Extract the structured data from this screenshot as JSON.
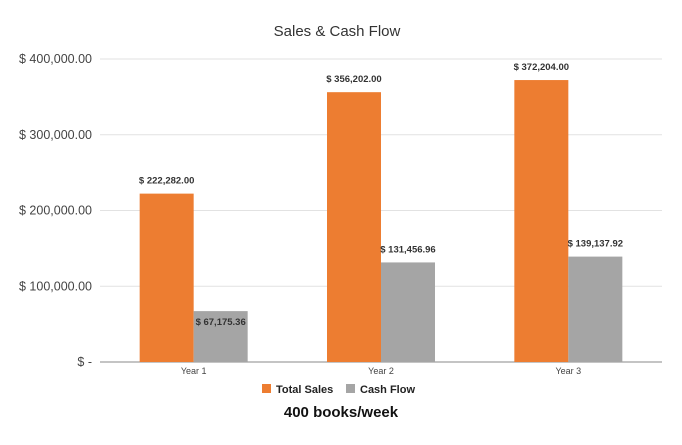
{
  "chart_data": {
    "type": "bar",
    "title": "Sales & Cash Flow",
    "categories": [
      "Year 1",
      "Year 2",
      "Year 3"
    ],
    "series": [
      {
        "name": "Total Sales",
        "color": "#ed7d31",
        "values": [
          222282.0,
          356202.0,
          372204.0
        ],
        "labels": [
          "$ 222,282.00",
          "$ 356,202.00",
          "$ 372,204.00"
        ]
      },
      {
        "name": "Cash Flow",
        "color": "#a5a5a5",
        "values": [
          67175.36,
          131456.96,
          139137.92
        ],
        "labels": [
          "$ 67,175.36",
          "$ 131,456.96",
          "$ 139,137.92"
        ]
      }
    ],
    "ylim": [
      0,
      400000
    ],
    "yticks": [
      {
        "value": 0,
        "label": "$ -"
      },
      {
        "value": 100000,
        "label": "$ 100,000.00"
      },
      {
        "value": 200000,
        "label": "$ 200,000.00"
      },
      {
        "value": 300000,
        "label": "$ 300,000.00"
      },
      {
        "value": 400000,
        "label": "$ 400,000.00"
      }
    ],
    "grid": true,
    "legend_position": "bottom"
  },
  "caption": "400 books/week"
}
